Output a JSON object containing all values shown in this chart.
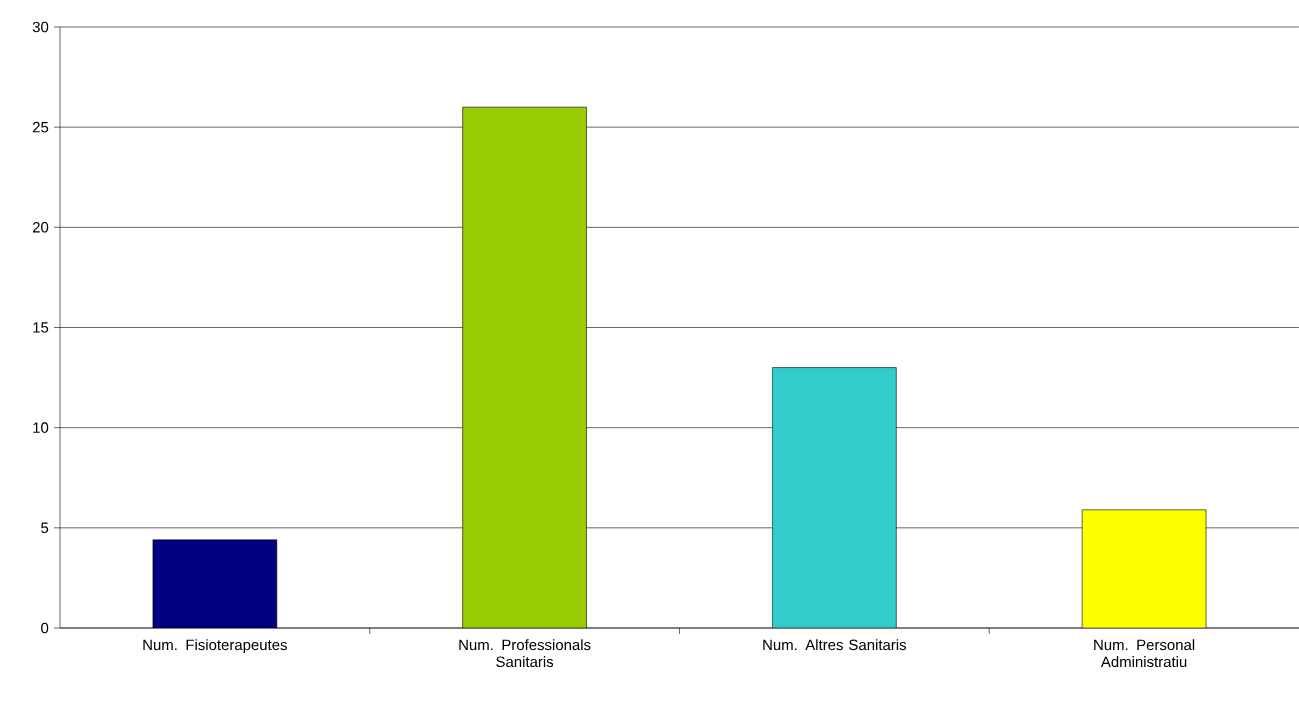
{
  "chart_data": {
    "type": "bar",
    "categories": [
      "Num. Fisioterapeutes",
      "Num. Professionals Sanitaris",
      "Num. Altres Sanitaris",
      "Num. Personal Administratiu"
    ],
    "values": [
      4.4,
      26.0,
      13.0,
      5.9
    ],
    "colors": [
      "#000080",
      "#99cc00",
      "#33cccc",
      "#ffff00"
    ],
    "ylim": [
      0,
      30
    ],
    "yticks": [
      0,
      5,
      10,
      15,
      20,
      25,
      30
    ],
    "grid": "y"
  }
}
